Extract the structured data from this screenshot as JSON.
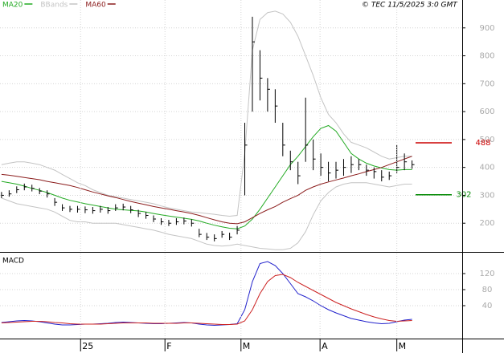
{
  "credit": "© TEC 11/5/2025 3:0 GMT",
  "chart_data": [
    {
      "type": "ohlc",
      "color": "#000000",
      "xlim": [
        -0.2,
        60.6
      ],
      "ylim": [
        100,
        1000
      ],
      "yticks": [
        200,
        300,
        400,
        500,
        600,
        700,
        800,
        900
      ],
      "grid": true,
      "close": [
        300,
        305,
        320,
        330,
        325,
        315,
        305,
        275,
        255,
        250,
        250,
        248,
        245,
        250,
        245,
        255,
        258,
        248,
        235,
        228,
        215,
        205,
        200,
        205,
        208,
        200,
        160,
        150,
        145,
        160,
        150,
        175,
        480,
        850,
        720,
        680,
        620,
        480,
        420,
        370,
        480,
        430,
        400,
        380,
        390,
        400,
        410,
        410,
        390,
        385,
        365,
        370,
        400,
        420,
        410
      ],
      "high": [
        312,
        318,
        332,
        342,
        338,
        326,
        318,
        290,
        268,
        262,
        262,
        260,
        258,
        262,
        258,
        268,
        270,
        262,
        248,
        240,
        228,
        218,
        212,
        218,
        220,
        214,
        180,
        165,
        160,
        172,
        166,
        190,
        560,
        940,
        820,
        720,
        680,
        560,
        460,
        420,
        650,
        500,
        450,
        420,
        420,
        430,
        440,
        430,
        410,
        400,
        390,
        385,
        480,
        450,
        425
      ],
      "low": [
        290,
        295,
        308,
        318,
        314,
        304,
        292,
        262,
        244,
        240,
        238,
        236,
        234,
        238,
        234,
        244,
        246,
        236,
        222,
        216,
        204,
        194,
        190,
        194,
        196,
        188,
        150,
        140,
        135,
        148,
        140,
        160,
        300,
        600,
        640,
        600,
        560,
        440,
        390,
        340,
        420,
        390,
        370,
        350,
        360,
        370,
        380,
        390,
        370,
        360,
        350,
        355,
        380,
        390,
        395
      ],
      "series": [
        {
          "name": "MA20",
          "color": "#22aa22",
          "values": [
            350,
            345,
            340,
            333,
            325,
            318,
            310,
            300,
            290,
            282,
            276,
            270,
            265,
            260,
            255,
            250,
            248,
            246,
            244,
            240,
            235,
            230,
            226,
            222,
            218,
            214,
            208,
            200,
            193,
            187,
            182,
            180,
            190,
            215,
            250,
            290,
            330,
            370,
            410,
            440,
            475,
            510,
            540,
            550,
            530,
            490,
            450,
            430,
            415,
            405,
            398,
            392,
            390,
            392,
            392
          ]
        },
        {
          "name": "BBands",
          "color": "#c4c4c4",
          "upper": [
            410,
            415,
            420,
            420,
            415,
            410,
            400,
            390,
            375,
            360,
            345,
            335,
            320,
            310,
            300,
            295,
            290,
            285,
            280,
            275,
            270,
            262,
            255,
            250,
            245,
            240,
            238,
            235,
            232,
            228,
            225,
            228,
            450,
            820,
            930,
            955,
            960,
            950,
            920,
            870,
            800,
            730,
            650,
            590,
            560,
            520,
            490,
            480,
            470,
            455,
            440,
            430,
            435,
            440,
            440
          ],
          "lower": [
            290,
            280,
            270,
            265,
            260,
            255,
            250,
            240,
            225,
            210,
            205,
            205,
            200,
            200,
            200,
            200,
            195,
            190,
            185,
            180,
            175,
            168,
            160,
            155,
            150,
            145,
            135,
            125,
            120,
            118,
            120,
            125,
            120,
            115,
            110,
            108,
            105,
            105,
            110,
            130,
            170,
            230,
            280,
            310,
            330,
            340,
            345,
            345,
            345,
            340,
            335,
            330,
            335,
            340,
            340
          ]
        },
        {
          "name": "MA60",
          "color": "#8b1c1c",
          "values": [
            375,
            372,
            368,
            364,
            360,
            356,
            350,
            345,
            340,
            335,
            328,
            320,
            312,
            305,
            298,
            292,
            285,
            278,
            272,
            266,
            260,
            255,
            250,
            245,
            240,
            235,
            228,
            220,
            212,
            205,
            200,
            198,
            205,
            220,
            235,
            248,
            260,
            275,
            288,
            300,
            318,
            330,
            340,
            348,
            355,
            362,
            370,
            377,
            385,
            392,
            400,
            410,
            420,
            430,
            440
          ]
        }
      ],
      "levels": [
        {
          "value": 488,
          "color": "#cc0000"
        },
        {
          "value": 302,
          "color": "#008800"
        }
      ]
    },
    {
      "type": "line",
      "title": "MACD",
      "xlim": [
        -0.2,
        60.6
      ],
      "ylim": [
        -42,
        170
      ],
      "yticks": [
        40,
        80,
        120
      ],
      "grid": true,
      "xticks": [
        {
          "value": 10.4,
          "label": "25"
        },
        {
          "value": 21.5,
          "label": "F"
        },
        {
          "value": 31.5,
          "label": "M"
        },
        {
          "value": 41.9,
          "label": "A"
        },
        {
          "value": 52.0,
          "label": "M"
        }
      ],
      "series": [
        {
          "color": "#2222cc",
          "values": [
            -2,
            0,
            2,
            3,
            2,
            0,
            -3,
            -6,
            -8,
            -8,
            -7,
            -6,
            -6,
            -5,
            -4,
            -2,
            -1,
            -2,
            -3,
            -4,
            -5,
            -5,
            -4,
            -3,
            -2,
            -3,
            -6,
            -8,
            -9,
            -8,
            -7,
            -5,
            30,
            100,
            145,
            150,
            140,
            120,
            95,
            70,
            62,
            52,
            40,
            30,
            22,
            15,
            8,
            4,
            0,
            -3,
            -5,
            -4,
            0,
            4,
            6
          ]
        },
        {
          "color": "#cc2222",
          "values": [
            -3,
            -2,
            -1,
            0,
            1,
            1,
            0,
            -2,
            -3,
            -5,
            -6,
            -6,
            -6,
            -6,
            -5,
            -4,
            -3,
            -3,
            -3,
            -3,
            -4,
            -4,
            -4,
            -4,
            -3,
            -3,
            -4,
            -5,
            -6,
            -7,
            -7,
            -6,
            2,
            30,
            70,
            100,
            115,
            118,
            110,
            98,
            88,
            78,
            68,
            58,
            48,
            40,
            32,
            25,
            18,
            12,
            7,
            3,
            1,
            2,
            3
          ]
        }
      ]
    }
  ]
}
